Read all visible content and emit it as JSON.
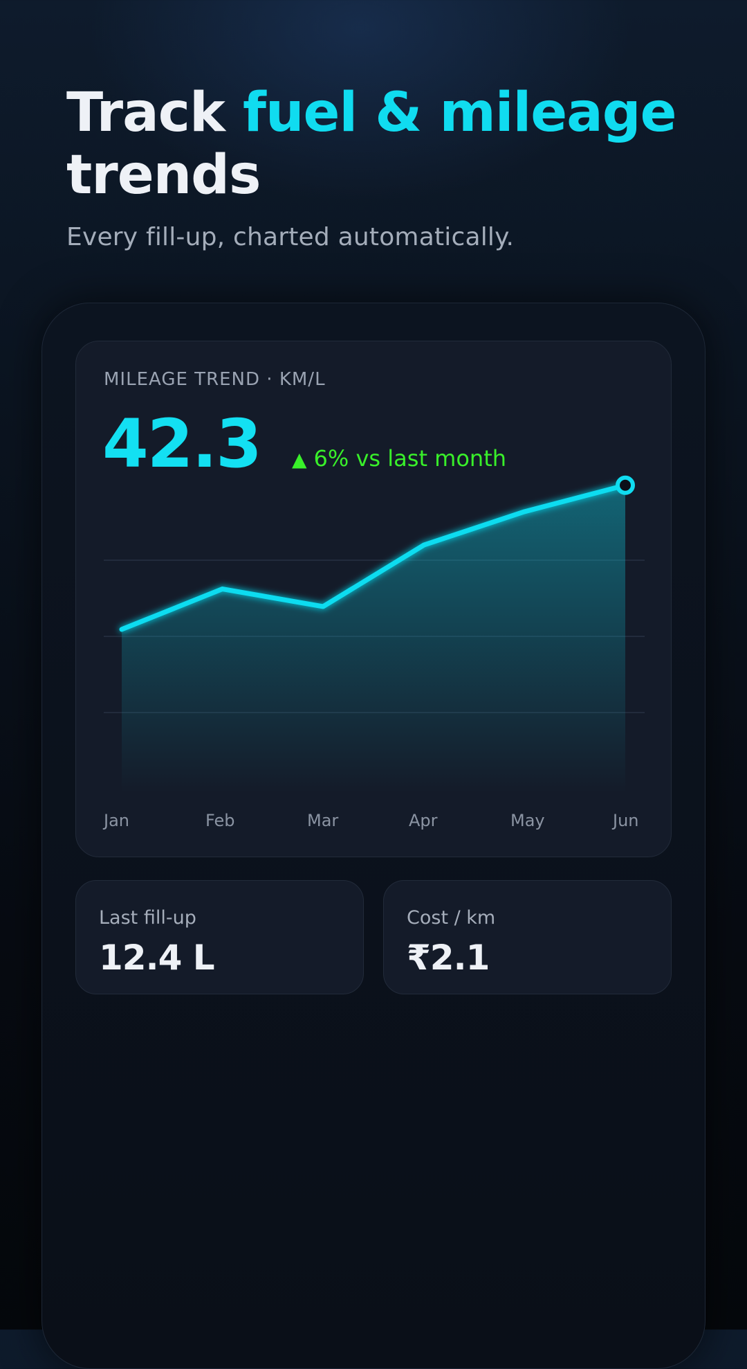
{
  "header": {
    "title_part1": "Track ",
    "title_accent": "fuel & mileage",
    "title_part2": "trends",
    "subtitle": "Every fill-up, charted automatically."
  },
  "mileage_card": {
    "label": "MILEAGE TREND · KM/L",
    "value": "42.3",
    "delta_icon": "up-triangle-icon",
    "delta_text": "6% vs last month"
  },
  "stats": [
    {
      "label": "Last fill-up",
      "value": "12.4 L"
    },
    {
      "label": "Cost / km",
      "value": "₹2.1"
    }
  ],
  "colors": {
    "accent": "#10dcf0",
    "positive": "#39f02a",
    "card": "#141b29"
  },
  "chart_data": {
    "type": "area",
    "categories": [
      "Jan",
      "Feb",
      "Mar",
      "Apr",
      "May",
      "Jun"
    ],
    "x": [
      "Jan",
      "Feb",
      "Mar",
      "Apr",
      "May",
      "Jun"
    ],
    "values": [
      34.1,
      36.4,
      35.4,
      38.9,
      40.8,
      42.3
    ],
    "ylim": [
      30,
      43
    ],
    "grid": true,
    "highlight_last_point": true,
    "xlabel": "",
    "ylabel": ""
  }
}
